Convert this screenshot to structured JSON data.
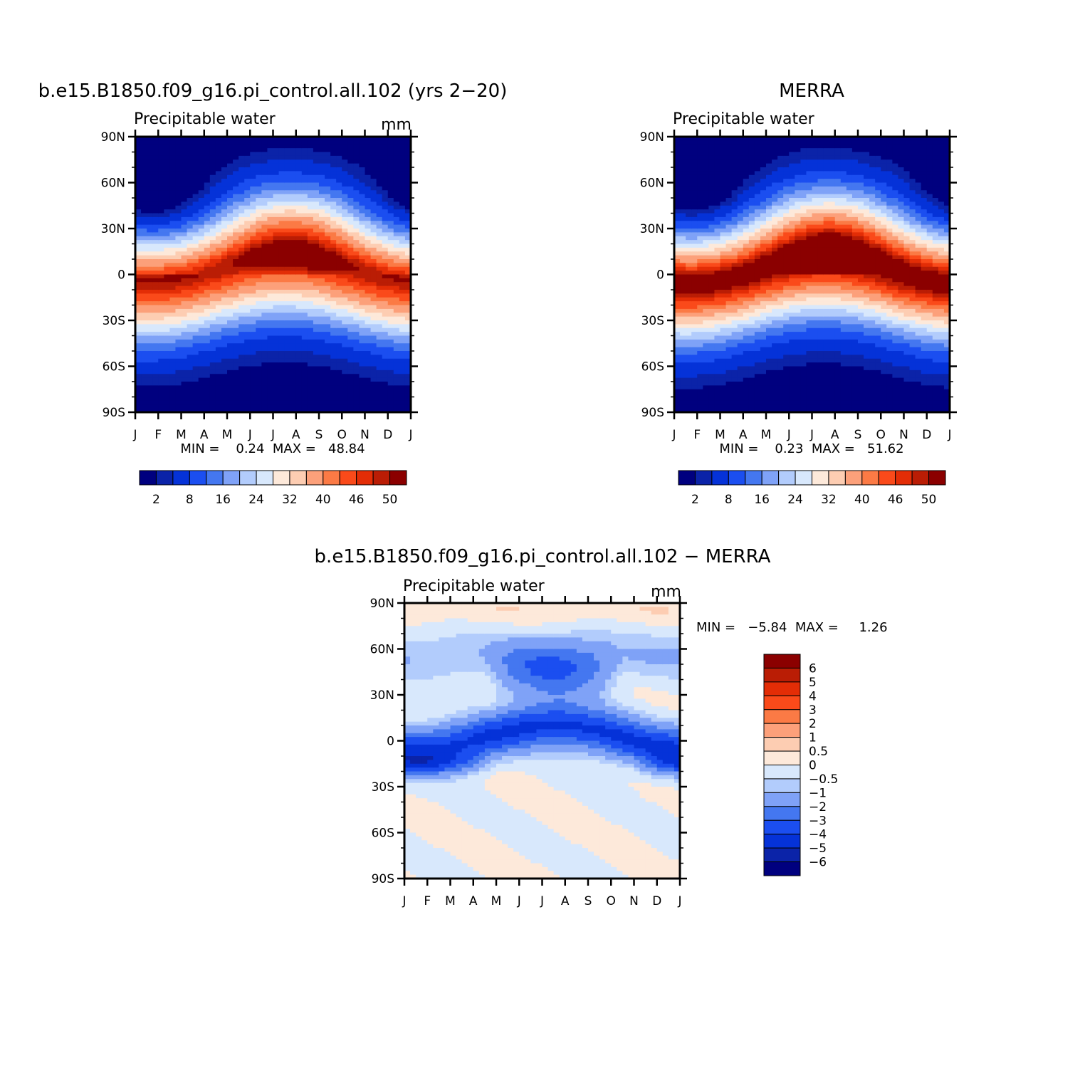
{
  "chart_data": [
    {
      "type": "heatmap",
      "title": "b.e15.B1850.f09_g16.pi_control.all.102 (yrs 2−20)",
      "subtitle_left": "Precipitable water",
      "units": "mm",
      "x_ticks": [
        "J",
        "F",
        "M",
        "A",
        "M",
        "J",
        "J",
        "A",
        "S",
        "O",
        "N",
        "D",
        "J"
      ],
      "y_ticks": [
        "90N",
        "60N",
        "30N",
        "0",
        "30S",
        "60S",
        "90S"
      ],
      "stats": "MIN =    0.24  MAX =   48.84",
      "min": 0.24,
      "max": 48.84,
      "colorbar_labels": [
        "2",
        "8",
        "16",
        "24",
        "32",
        "40",
        "46",
        "50"
      ],
      "colorbar_orientation": "horizontal",
      "peak": {
        "lat_min": -5,
        "lat_max": 10,
        "value_approx": 48
      },
      "pattern": "zonal-mean seasonal cycle; moist band near equator migrating north in boreal summer; dry poles"
    },
    {
      "type": "heatmap",
      "title": "MERRA",
      "subtitle_left": "Precipitable water",
      "units": "",
      "x_ticks": [
        "J",
        "F",
        "M",
        "A",
        "M",
        "J",
        "J",
        "A",
        "S",
        "O",
        "N",
        "D",
        "J"
      ],
      "y_ticks": [
        "90N",
        "60N",
        "30N",
        "0",
        "30S",
        "60S",
        "90S"
      ],
      "stats": "MIN =    0.23  MAX =   51.62",
      "min": 0.23,
      "max": 51.62,
      "colorbar_labels": [
        "2",
        "8",
        "16",
        "24",
        "32",
        "40",
        "46",
        "50"
      ],
      "colorbar_orientation": "horizontal",
      "peak": {
        "lat_min": 0,
        "lat_max": 12,
        "value_approx": 51
      },
      "pattern": "same structure as model with stronger equatorial maximum"
    },
    {
      "type": "heatmap",
      "title": "b.e15.B1850.f09_g16.pi_control.all.102 − MERRA",
      "subtitle_left": "Precipitable water",
      "units": "mm",
      "x_ticks": [
        "J",
        "F",
        "M",
        "A",
        "M",
        "J",
        "J",
        "A",
        "S",
        "O",
        "N",
        "D",
        "J"
      ],
      "y_ticks": [
        "90N",
        "60N",
        "30N",
        "0",
        "30S",
        "60S",
        "90S"
      ],
      "stats": "MIN =   −5.84  MAX =     1.26",
      "min": -5.84,
      "max": 1.26,
      "colorbar_labels": [
        "6",
        "5",
        "4",
        "3",
        "2",
        "1",
        "0.5",
        "0",
        "−0.5",
        "−1",
        "−2",
        "−3",
        "−4",
        "−5",
        "−6"
      ],
      "colorbar_orientation": "vertical",
      "pattern": "negative (model drier) over tropics and northern summer midlatitudes; slightly positive near poles and southern extratropics"
    }
  ],
  "colors": {
    "seq": [
      "#00007f",
      "#0b23a8",
      "#0532d8",
      "#1b4ef0",
      "#4477f0",
      "#7fa2f7",
      "#b2ccfc",
      "#d8e8fc",
      "#fde9da",
      "#fdcdb2",
      "#fca07a",
      "#fb7a45",
      "#fa4a1a",
      "#e32d06",
      "#ba1d05",
      "#8b0000"
    ],
    "diff": [
      "#00007f",
      "#0b23a8",
      "#0532d8",
      "#1b4ef0",
      "#4477f0",
      "#7fa2f7",
      "#b2ccfc",
      "#d8e8fc",
      "#fde9da",
      "#fdcdb2",
      "#fca07a",
      "#fb7a45",
      "#fa4a1a",
      "#e32d06",
      "#ba1d05",
      "#8b0000"
    ]
  }
}
